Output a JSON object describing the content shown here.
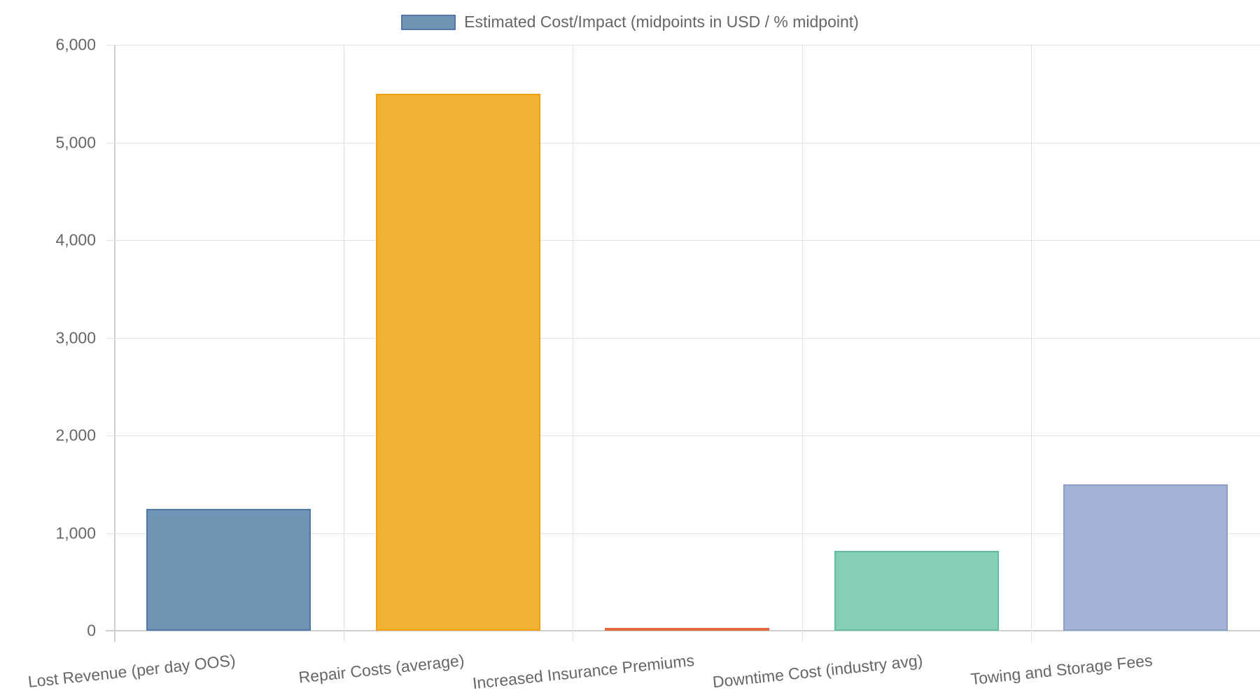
{
  "chart_data": {
    "type": "bar",
    "title": "",
    "xlabel": "",
    "ylabel": "",
    "legend": {
      "position": "top",
      "entries": [
        "Estimated Cost/Impact (midpoints in USD / % midpoint)"
      ]
    },
    "grid": true,
    "ylim": [
      0,
      6000
    ],
    "yticks": [
      "0",
      "1,000",
      "2,000",
      "3,000",
      "4,000",
      "5,000",
      "6,000"
    ],
    "categories": [
      "Lost Revenue (per day OOS)",
      "Repair Costs (average)",
      "Increased Insurance Premiums",
      "Downtime Cost (industry avg)",
      "Towing and Storage Fees"
    ],
    "series": [
      {
        "name": "Estimated Cost/Impact (midpoints in USD / % midpoint)",
        "values": [
          1250,
          5500,
          15,
          820,
          1500
        ],
        "colors": [
          "#4e79a7",
          "#f29e0e",
          "#e15759",
          "#59b89a",
          "#7f91c4"
        ]
      }
    ]
  },
  "legend": {
    "label": "Estimated Cost/Impact (midpoints in USD / % midpoint)"
  },
  "colors": {
    "bar_fills": [
      "#7094b3",
      "#f4b234",
      "#e8825a",
      "#86cfb7",
      "#a5b3d6"
    ],
    "bar_borders": [
      "#4e79a7",
      "#f29e0e",
      "#e06a3a",
      "#5fc09f",
      "#8c9cc8"
    ]
  }
}
